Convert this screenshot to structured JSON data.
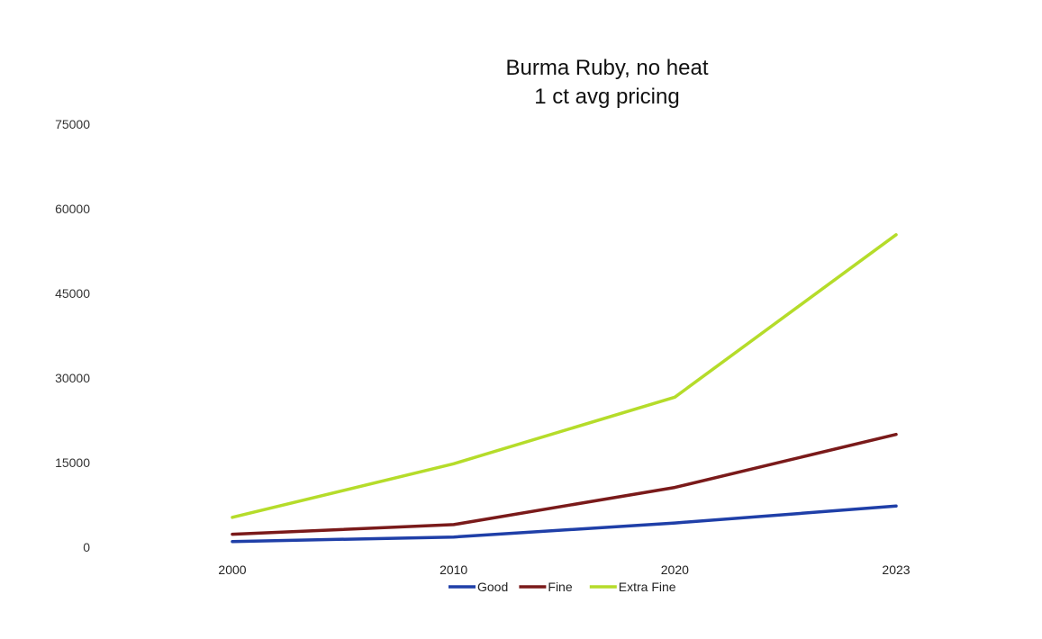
{
  "chart_data": {
    "type": "line",
    "title": "Burma Ruby, no heat",
    "subtitle": "1 ct avg pricing",
    "x": [
      "2000",
      "2010",
      "2020",
      "2023"
    ],
    "y_ticks": [
      "75000",
      "60000",
      "45000",
      "30000",
      "15000",
      "0"
    ],
    "ylim": [
      0,
      75000
    ],
    "grid": false,
    "legend_position": "bottom",
    "series": [
      {
        "name": "Good",
        "color": "#1f3fa8",
        "values": [
          1000,
          1800,
          4300,
          7300
        ]
      },
      {
        "name": "Fine",
        "color": "#7a1a1a",
        "values": [
          2300,
          4000,
          10600,
          20000
        ]
      },
      {
        "name": "Extra Fine",
        "color": "#b5dc2a",
        "values": [
          5300,
          14800,
          26600,
          55400
        ]
      }
    ]
  }
}
